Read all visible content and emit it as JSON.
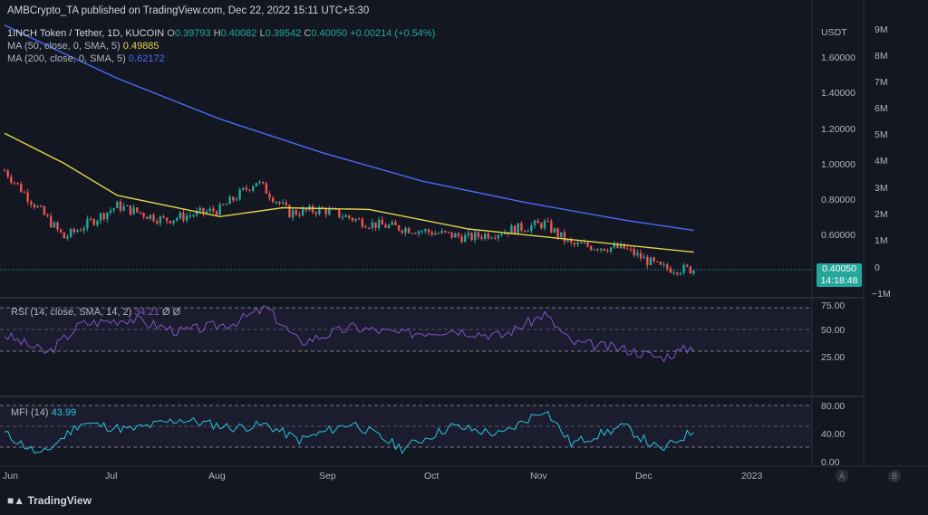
{
  "header": {
    "published": "AMBCrypto_TA published on TradingView.com, Dec 22, 2022 15:11 UTC+5:30",
    "symbol": "1INCH Token / Tether, 1D, KUCOIN",
    "o_label": "O",
    "o": "0.39793",
    "h_label": "H",
    "h": "0.40082",
    "l_label": "L",
    "l": "0.39542",
    "c_label": "C",
    "c": "0.40050",
    "change": "+0.00214 (+0.54%)",
    "ma50_label": "MA (50, close, 0, SMA, 5)",
    "ma50_value": "0.49885",
    "ma200_label": "MA (200, close, 0, SMA, 5)",
    "ma200_value": "0.62172"
  },
  "price_axis": {
    "currency": "USDT",
    "ticks": [
      "1.60000",
      "1.40000",
      "1.20000",
      "1.00000",
      "0.80000",
      "0.60000"
    ],
    "last_price": "0.40050",
    "countdown": "14:18:48"
  },
  "volume_axis": {
    "ticks": [
      "9M",
      "8M",
      "7M",
      "6M",
      "5M",
      "4M",
      "3M",
      "2M",
      "1M",
      "0",
      "−1M"
    ]
  },
  "rsi": {
    "label": "RSI (14, close, SMA, 14, 2)",
    "value": "34.21",
    "extra": "Ø Ø",
    "ticks": [
      "75.00",
      "50.00",
      "25.00"
    ]
  },
  "mfi": {
    "label": "MFI (14)",
    "value": "43.99",
    "ticks": [
      "80.00",
      "40.00",
      "0.00"
    ]
  },
  "x_axis": {
    "labels": [
      "Jun",
      "Jul",
      "Aug",
      "Sep",
      "Oct",
      "Nov",
      "Dec",
      "2023"
    ]
  },
  "footer": {
    "brand": "TradingView"
  },
  "buttons": {
    "auto": "A",
    "log": "B"
  },
  "colors": {
    "bg": "#131722",
    "up": "#26a69a",
    "down": "#ef5350",
    "ma50": "#e5d44a",
    "ma200": "#4a6cf7",
    "rsi": "#7e57c2",
    "mfi": "#26c6da"
  },
  "chart_data": [
    {
      "type": "candlestick",
      "title": "1INCH Token / Tether, 1D, KUCOIN",
      "ylabel": "USDT",
      "ylim": [
        0.3,
        1.75
      ],
      "x": [
        "2022-05-28",
        "2022-06-15",
        "2022-07-01",
        "2022-07-15",
        "2022-08-01",
        "2022-08-12",
        "2022-08-22",
        "2022-09-01",
        "2022-09-15",
        "2022-10-01",
        "2022-10-15",
        "2022-11-01",
        "2022-11-07",
        "2022-11-15",
        "2022-12-01",
        "2022-12-12",
        "2022-12-22"
      ],
      "close": [
        0.96,
        0.58,
        0.76,
        0.68,
        0.74,
        0.9,
        0.72,
        0.74,
        0.66,
        0.62,
        0.58,
        0.64,
        0.66,
        0.54,
        0.52,
        0.41,
        0.4005
      ],
      "series": [
        {
          "name": "MA (50, close, 0, SMA, 5)",
          "x": [
            "2022-05-28",
            "2022-06-15",
            "2022-07-01",
            "2022-08-01",
            "2022-08-20",
            "2022-09-15",
            "2022-10-15",
            "2022-11-15",
            "2022-12-22"
          ],
          "values": [
            1.17,
            1.0,
            0.82,
            0.7,
            0.75,
            0.74,
            0.63,
            0.57,
            0.49885
          ]
        },
        {
          "name": "MA (200, close, 0, SMA, 5)",
          "x": [
            "2022-05-28",
            "2022-06-15",
            "2022-07-01",
            "2022-08-01",
            "2022-09-01",
            "2022-10-01",
            "2022-11-01",
            "2022-12-01",
            "2022-12-22"
          ],
          "values": [
            1.78,
            1.62,
            1.48,
            1.25,
            1.06,
            0.9,
            0.78,
            0.68,
            0.62172
          ]
        }
      ]
    },
    {
      "type": "line",
      "title": "RSI (14, close, SMA, 14, 2)",
      "ylim": [
        15,
        85
      ],
      "x": [
        "2022-05-28",
        "2022-06-10",
        "2022-06-20",
        "2022-07-05",
        "2022-07-20",
        "2022-08-05",
        "2022-08-15",
        "2022-08-25",
        "2022-09-10",
        "2022-09-25",
        "2022-10-10",
        "2022-10-25",
        "2022-11-07",
        "2022-11-15",
        "2022-12-01",
        "2022-12-12",
        "2022-12-22"
      ],
      "series": [
        {
          "name": "RSI",
          "values": [
            45,
            28,
            55,
            60,
            48,
            56,
            70,
            38,
            52,
            46,
            50,
            44,
            64,
            38,
            32,
            24,
            34.21
          ]
        }
      ],
      "bands": [
        30,
        50,
        70
      ]
    },
    {
      "type": "line",
      "title": "MFI (14)",
      "ylim": [
        0,
        90
      ],
      "x": [
        "2022-05-28",
        "2022-06-08",
        "2022-06-20",
        "2022-07-05",
        "2022-07-20",
        "2022-08-05",
        "2022-08-15",
        "2022-08-25",
        "2022-09-10",
        "2022-09-25",
        "2022-10-10",
        "2022-10-25",
        "2022-11-07",
        "2022-11-15",
        "2022-12-01",
        "2022-12-12",
        "2022-12-22"
      ],
      "series": [
        {
          "name": "MFI",
          "values": [
            40,
            8,
            55,
            45,
            60,
            48,
            52,
            30,
            55,
            18,
            50,
            38,
            75,
            25,
            50,
            15,
            43.99
          ]
        }
      ],
      "bands": [
        20,
        50,
        80
      ]
    }
  ]
}
